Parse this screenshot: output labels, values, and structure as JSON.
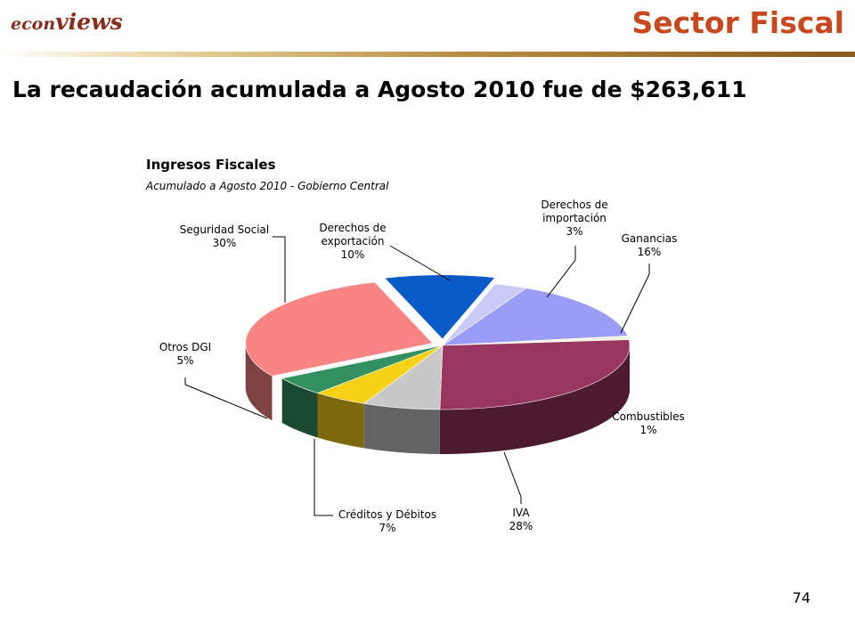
{
  "header": {
    "logo_part1": "econ",
    "logo_part2": "views",
    "section_title": "Sector Fiscal"
  },
  "headline": "La recaudación acumulada a Agosto 2010 fue de $263,611",
  "page_number": "74",
  "chart_data": {
    "type": "pie",
    "title": "Ingresos Fiscales",
    "subtitle": "Acumulado a Agosto 2010 - Gobierno Central",
    "three_d": true,
    "slices": [
      {
        "label": [
          "Derechos de",
          "exportación"
        ],
        "percent_label": "10%",
        "value": 10,
        "color": "#0a5ac8",
        "exploded": true
      },
      {
        "label": [
          "Derechos de",
          "importación"
        ],
        "percent_label": "3%",
        "value": 3,
        "color": "#c9cbf6",
        "exploded": false
      },
      {
        "label": [
          "Ganancias"
        ],
        "percent_label": "16%",
        "value": 16,
        "color": "#9a9cf6",
        "exploded": false
      },
      {
        "label": [
          "Combustibles"
        ],
        "percent_label": "1%",
        "value": 1,
        "color": "#f4f4e0",
        "exploded": false
      },
      {
        "label": [
          "IVA"
        ],
        "percent_label": "28%",
        "value": 28,
        "color": "#983660",
        "exploded": false
      },
      {
        "label": [
          "Créditos y Débitos"
        ],
        "percent_label": "7%",
        "value": 7,
        "color": "#c8c8c8",
        "exploded": false
      },
      {
        "label": [
          "Otros DGI"
        ],
        "percent_label": "5%",
        "value": 5,
        "color": "#f5d218",
        "exploded": false
      },
      {
        "label": [],
        "percent_label": "",
        "value": 5,
        "color": "#349060",
        "exploded": false
      },
      {
        "label": [
          "Seguridad Social"
        ],
        "percent_label": "30%",
        "value": 30,
        "color": "#f98484",
        "exploded": true
      }
    ]
  }
}
